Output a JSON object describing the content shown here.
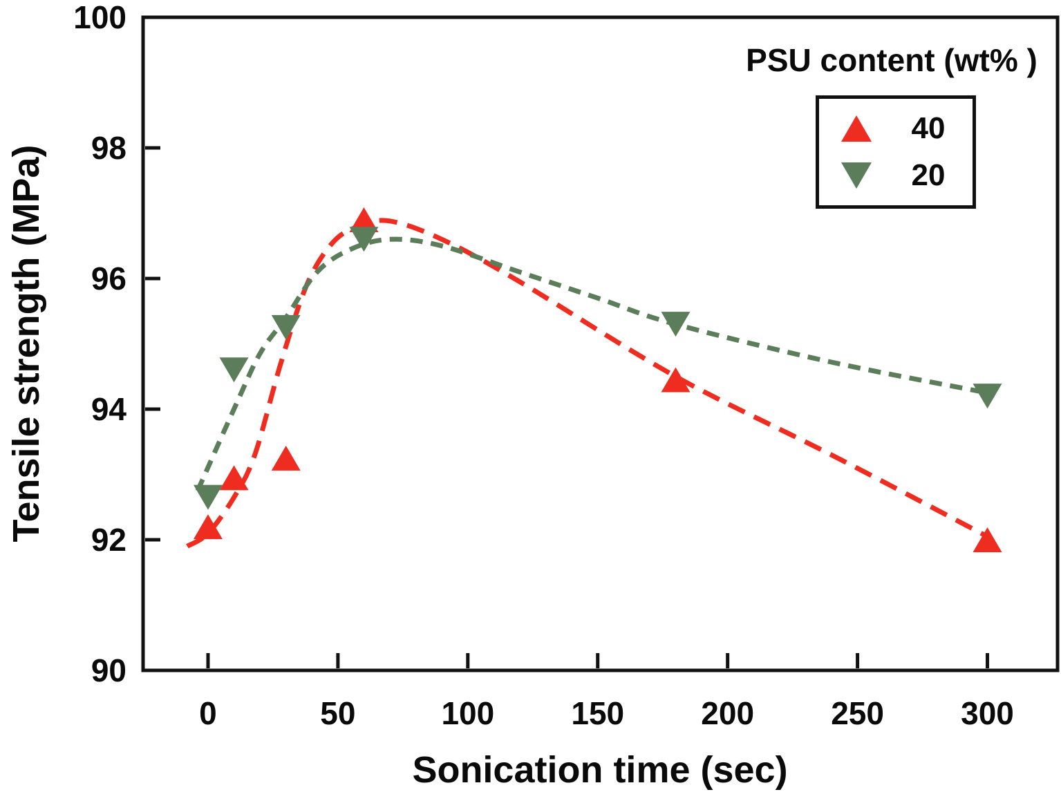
{
  "chart_data": {
    "type": "scatter",
    "title": "",
    "xlabel": "Sonication time (sec)",
    "ylabel": "Tensile strength (MPa)",
    "xlim": [
      -25,
      327
    ],
    "ylim": [
      90,
      100
    ],
    "xticks": [
      0,
      50,
      100,
      150,
      200,
      250,
      300
    ],
    "yticks": [
      90,
      92,
      94,
      96,
      98,
      100
    ],
    "grid": false,
    "axis_color": "#111111",
    "legend": {
      "title": "PSU content (wt% )",
      "position": "top-right",
      "entries": [
        {
          "label": "40",
          "marker": "triangle-up",
          "color": "#ee2c20"
        },
        {
          "label": "20",
          "marker": "triangle-down",
          "color": "#5b7d5a"
        }
      ]
    },
    "series": [
      {
        "name": "PSU 40 wt%",
        "marker": "triangle-up",
        "color": "#ee2c20",
        "line_style": "dashed",
        "dash_pattern": "26 15",
        "points": [
          [
            0,
            92.2
          ],
          [
            10,
            92.95
          ],
          [
            30,
            93.25
          ],
          [
            60,
            96.9
          ],
          [
            180,
            94.45
          ],
          [
            300,
            92.0
          ]
        ],
        "fit_curve_points": [
          [
            -8,
            91.9
          ],
          [
            0,
            92.1
          ],
          [
            10,
            92.65
          ],
          [
            18,
            93.3
          ],
          [
            28,
            94.7
          ],
          [
            38,
            95.9
          ],
          [
            48,
            96.55
          ],
          [
            58,
            96.8
          ],
          [
            70,
            96.88
          ],
          [
            90,
            96.6
          ],
          [
            120,
            95.95
          ],
          [
            180,
            94.5
          ],
          [
            240,
            93.3
          ],
          [
            300,
            92.05
          ]
        ]
      },
      {
        "name": "PSU 20 wt%",
        "marker": "triangle-down",
        "color": "#5b7d5a",
        "line_style": "dashed",
        "dash_pattern": "18 12",
        "points": [
          [
            0,
            92.65
          ],
          [
            10,
            94.6
          ],
          [
            30,
            95.25
          ],
          [
            60,
            96.6
          ],
          [
            180,
            95.3
          ],
          [
            300,
            94.2
          ]
        ],
        "fit_curve_points": [
          [
            -4,
            92.75
          ],
          [
            10,
            94.0
          ],
          [
            20,
            94.85
          ],
          [
            30,
            95.4
          ],
          [
            42,
            96.1
          ],
          [
            55,
            96.45
          ],
          [
            70,
            96.6
          ],
          [
            90,
            96.5
          ],
          [
            120,
            96.1
          ],
          [
            150,
            95.7
          ],
          [
            180,
            95.3
          ],
          [
            240,
            94.72
          ],
          [
            300,
            94.25
          ]
        ]
      }
    ]
  }
}
